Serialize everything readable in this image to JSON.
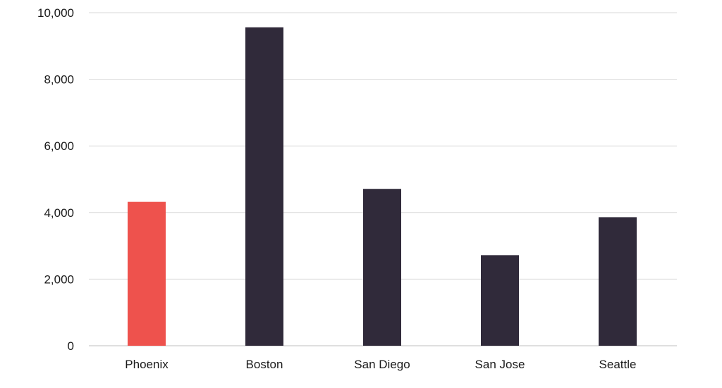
{
  "chart_data": {
    "type": "bar",
    "categories": [
      "Phoenix",
      "Boston",
      "San Diego",
      "San Jose",
      "Seattle"
    ],
    "values": [
      4320,
      9560,
      4710,
      2720,
      3860
    ],
    "bar_colors": [
      "#ee524d",
      "#302a3a",
      "#302a3a",
      "#302a3a",
      "#302a3a"
    ],
    "highlight_color": "#ee524d",
    "default_color": "#302a3a",
    "ylim": [
      0,
      10000
    ],
    "yticks": [
      0,
      2000,
      4000,
      6000,
      8000,
      10000
    ],
    "ytick_labels": [
      "0",
      "2,000",
      "4,000",
      "6,000",
      "8,000",
      "10,000"
    ],
    "grid": true,
    "legend": false
  }
}
